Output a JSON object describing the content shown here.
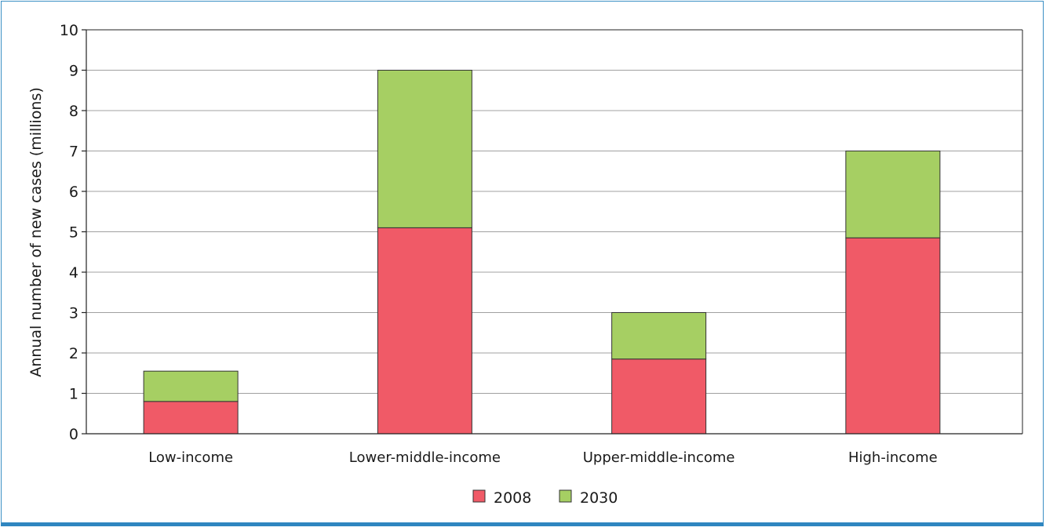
{
  "chart_data": {
    "type": "bar",
    "stacked": true,
    "categories": [
      "Low-income",
      "Lower-middle-income",
      "Upper-middle-income",
      "High-income"
    ],
    "series": [
      {
        "name": "2008",
        "values": [
          0.8,
          5.1,
          1.85,
          4.85
        ],
        "color": "#f05a67"
      },
      {
        "name": "2030",
        "values": [
          0.75,
          3.9,
          1.15,
          2.15
        ],
        "color": "#a6cf63"
      }
    ],
    "title": "",
    "xlabel": "",
    "ylabel": "Annual number of new cases (millions)",
    "ylim": [
      0,
      10
    ],
    "yticks": [
      0,
      1,
      2,
      3,
      4,
      5,
      6,
      7,
      8,
      9,
      10
    ],
    "grid": true,
    "legend_position": "bottom-center"
  },
  "colors": {
    "frame": "#3b8fc4",
    "grid": "#a0a0a0",
    "bar_outline": "#333333"
  }
}
